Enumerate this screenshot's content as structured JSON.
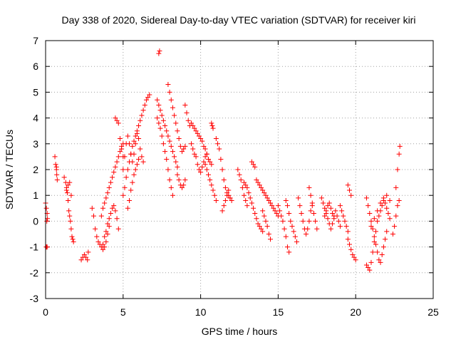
{
  "chart_data": {
    "type": "scatter",
    "title": "Day 338 of 2020, Sidereal Day-to-day VTEC variation (SDTVAR) for receiver kiri",
    "xlabel": "GPS time / hours",
    "ylabel": "SDTVAR / TECUs",
    "xlim": [
      0,
      25
    ],
    "ylim": [
      -3,
      7
    ],
    "xticks": [
      "0",
      "5",
      "10",
      "15",
      "20",
      "25"
    ],
    "yticks": [
      "-3",
      "-2",
      "-1",
      "0",
      "1",
      "2",
      "3",
      "4",
      "5",
      "6",
      "7"
    ],
    "marker": "plus",
    "marker_color": "#ff0000",
    "grid": true,
    "series": [
      {
        "name": "seg01",
        "x": [
          0.0,
          0.05,
          0.1,
          0.12,
          0.08,
          0.04,
          0.06,
          0.1
        ],
        "y": [
          0.7,
          0.5,
          0.3,
          0.1,
          0.0,
          -1.0,
          -1.0,
          -1.0
        ]
      },
      {
        "name": "seg02",
        "x": [
          0.6,
          0.65,
          0.7,
          0.72,
          0.75,
          0.7
        ],
        "y": [
          2.5,
          2.2,
          2.0,
          1.8,
          1.6,
          2.1
        ]
      },
      {
        "name": "seg03",
        "x": [
          1.2,
          1.3,
          1.35,
          1.4,
          1.45,
          1.5,
          1.55,
          1.6,
          1.65,
          1.7,
          1.75,
          1.8
        ],
        "y": [
          1.7,
          1.5,
          1.3,
          1.1,
          0.8,
          0.4,
          0.2,
          0.0,
          -0.3,
          -0.6,
          -0.7,
          -0.8
        ]
      },
      {
        "name": "seg04",
        "x": [
          1.35,
          1.45,
          1.55,
          1.65
        ],
        "y": [
          1.2,
          1.4,
          1.5,
          1.0
        ]
      },
      {
        "name": "seg05",
        "x": [
          2.3,
          2.4,
          2.5,
          2.6,
          2.7,
          2.75
        ],
        "y": [
          -1.5,
          -1.4,
          -1.3,
          -1.4,
          -1.5,
          -1.2
        ]
      },
      {
        "name": "seg06",
        "x": [
          3.0,
          3.1,
          3.2,
          3.3,
          3.4,
          3.5,
          3.6,
          3.7,
          3.8,
          3.9,
          4.0,
          4.1
        ],
        "y": [
          0.5,
          0.2,
          -0.3,
          -0.6,
          -0.8,
          -0.9,
          -1.0,
          -1.1,
          -1.0,
          -0.8,
          -0.5,
          -0.2
        ]
      },
      {
        "name": "seg07",
        "x": [
          3.6,
          3.7,
          3.8,
          3.9,
          4.0,
          4.1,
          4.2,
          4.3,
          4.4,
          4.5,
          4.6,
          4.7,
          4.8,
          4.9,
          5.0
        ],
        "y": [
          0.2,
          0.5,
          0.7,
          0.9,
          1.1,
          1.3,
          1.5,
          1.7,
          1.9,
          2.1,
          2.3,
          2.5,
          2.7,
          2.9,
          3.0
        ]
      },
      {
        "name": "seg08",
        "x": [
          3.7,
          3.8,
          3.9,
          4.0,
          4.1,
          4.2,
          4.3,
          4.4,
          4.5,
          4.6,
          4.7
        ],
        "y": [
          -0.9,
          -0.6,
          -0.4,
          -0.1,
          0.1,
          0.3,
          0.5,
          0.6,
          0.4,
          0.1,
          -0.3
        ]
      },
      {
        "name": "seg09",
        "x": [
          4.5,
          4.6,
          4.7,
          4.8,
          4.9,
          5.0
        ],
        "y": [
          4.0,
          3.9,
          3.8,
          3.2,
          2.8,
          2.5
        ]
      },
      {
        "name": "seg10",
        "x": [
          5.0,
          5.1,
          5.2,
          5.3,
          5.4,
          5.5,
          5.6,
          5.7,
          5.8,
          5.9,
          6.0,
          6.1,
          6.2,
          6.3,
          6.4,
          6.5,
          6.6,
          6.7
        ],
        "y": [
          2.0,
          2.5,
          3.0,
          3.3,
          3.0,
          2.6,
          2.3,
          2.6,
          3.0,
          3.4,
          3.7,
          3.9,
          4.1,
          4.3,
          4.5,
          4.7,
          4.8,
          4.9
        ]
      },
      {
        "name": "seg11",
        "x": [
          5.0,
          5.1,
          5.2,
          5.3,
          5.4,
          5.5,
          5.6,
          5.7,
          5.8,
          5.9,
          6.0,
          6.1,
          6.2,
          6.3
        ],
        "y": [
          1.0,
          1.3,
          1.7,
          2.0,
          2.3,
          2.6,
          2.9,
          3.1,
          3.3,
          3.5,
          3.2,
          2.8,
          2.5,
          2.3
        ]
      },
      {
        "name": "seg12",
        "x": [
          5.3,
          5.4,
          5.5,
          5.6,
          5.7,
          5.8,
          5.9,
          6.0
        ],
        "y": [
          0.5,
          0.8,
          1.2,
          1.5,
          1.8,
          2.0,
          2.2,
          2.4
        ]
      },
      {
        "name": "seg13",
        "x": [
          7.3,
          7.35
        ],
        "y": [
          6.5,
          6.6
        ]
      },
      {
        "name": "seg14",
        "x": [
          7.2,
          7.3,
          7.4,
          7.5,
          7.6,
          7.7,
          7.8,
          7.9,
          8.0,
          8.1,
          8.2,
          8.3,
          8.4,
          8.5
        ],
        "y": [
          4.7,
          4.5,
          4.3,
          4.1,
          3.9,
          3.7,
          3.5,
          3.3,
          3.1,
          2.9,
          2.7,
          2.5,
          2.3,
          2.1
        ]
      },
      {
        "name": "seg15",
        "x": [
          7.2,
          7.3,
          7.4,
          7.5,
          7.6,
          7.7,
          7.8,
          7.9,
          8.0,
          8.1,
          8.2
        ],
        "y": [
          4.0,
          3.8,
          3.6,
          3.3,
          3.0,
          2.7,
          2.4,
          2.0,
          1.6,
          1.3,
          1.0
        ]
      },
      {
        "name": "seg16",
        "x": [
          7.9,
          8.0,
          8.1,
          8.2,
          8.3,
          8.4,
          8.5,
          8.6,
          8.7,
          8.8,
          8.9,
          9.0
        ],
        "y": [
          5.3,
          5.0,
          4.7,
          4.4,
          4.1,
          3.8,
          3.5,
          3.2,
          2.9,
          2.7,
          2.8,
          2.9
        ]
      },
      {
        "name": "seg17",
        "x": [
          8.5,
          8.6,
          8.7,
          8.8,
          8.9,
          9.0
        ],
        "y": [
          1.8,
          1.6,
          1.4,
          1.3,
          1.4,
          1.6
        ]
      },
      {
        "name": "seg18",
        "x": [
          9.0,
          9.1,
          9.2,
          9.3,
          9.4,
          9.5,
          9.6,
          9.7,
          9.8,
          9.9,
          10.0,
          10.1,
          10.2,
          10.3,
          10.4,
          10.5,
          10.6,
          10.7
        ],
        "y": [
          4.5,
          4.2,
          3.9,
          3.7,
          3.8,
          3.7,
          3.6,
          3.5,
          3.4,
          3.3,
          3.2,
          3.1,
          2.9,
          2.8,
          2.6,
          2.4,
          2.3,
          2.2
        ]
      },
      {
        "name": "seg19",
        "x": [
          9.4,
          9.5,
          9.6,
          9.7,
          9.8,
          9.9,
          10.0,
          10.1,
          10.2,
          10.3,
          10.4,
          10.5
        ],
        "y": [
          3.0,
          2.8,
          2.6,
          2.5,
          2.2,
          2.0,
          1.9,
          2.1,
          2.3,
          2.5,
          2.6,
          2.4
        ]
      },
      {
        "name": "seg20",
        "x": [
          10.3,
          10.4,
          10.5,
          10.6,
          10.7,
          10.8,
          10.9,
          11.0
        ],
        "y": [
          2.2,
          2.0,
          1.8,
          1.6,
          1.4,
          1.2,
          1.0,
          0.8
        ]
      },
      {
        "name": "seg21",
        "x": [
          10.7,
          10.75,
          10.8
        ],
        "y": [
          3.8,
          3.7,
          3.6
        ]
      },
      {
        "name": "seg22",
        "x": [
          11.0,
          11.1,
          11.2,
          11.3,
          11.4,
          11.5,
          11.6,
          11.7,
          11.8,
          11.9,
          12.0
        ],
        "y": [
          3.2,
          3.0,
          2.8,
          2.4,
          2.0,
          1.6,
          1.3,
          1.1,
          1.0,
          0.9,
          0.8
        ]
      },
      {
        "name": "seg23",
        "x": [
          11.4,
          11.5,
          11.6,
          11.7,
          11.8,
          11.9
        ],
        "y": [
          0.4,
          0.6,
          0.8,
          1.0,
          1.2,
          0.9
        ]
      },
      {
        "name": "seg24",
        "x": [
          12.4,
          12.5,
          12.6,
          12.7,
          12.8,
          12.9,
          13.0
        ],
        "y": [
          2.0,
          1.8,
          1.6,
          1.3,
          1.0,
          0.8,
          0.6
        ]
      },
      {
        "name": "seg25",
        "x": [
          12.8,
          12.9,
          13.0,
          13.1,
          13.2,
          13.3,
          13.4,
          13.5,
          13.6,
          13.7,
          13.8,
          13.9,
          14.0
        ],
        "y": [
          1.5,
          1.4,
          1.3,
          1.1,
          0.9,
          0.7,
          0.5,
          0.3,
          0.1,
          -0.1,
          -0.2,
          -0.3,
          -0.4
        ]
      },
      {
        "name": "seg26",
        "x": [
          13.3,
          13.4,
          13.5
        ],
        "y": [
          2.3,
          2.2,
          2.1
        ]
      },
      {
        "name": "seg27",
        "x": [
          13.6,
          13.7,
          13.8,
          13.9,
          14.0,
          14.1,
          14.2,
          14.3,
          14.4,
          14.5,
          14.6,
          14.7,
          14.8,
          14.9,
          15.0
        ],
        "y": [
          1.6,
          1.5,
          1.4,
          1.3,
          1.2,
          1.1,
          1.0,
          0.9,
          0.8,
          0.7,
          0.6,
          0.5,
          0.4,
          0.3,
          0.2
        ]
      },
      {
        "name": "seg28",
        "x": [
          14.0,
          14.1,
          14.2,
          14.3,
          14.4,
          14.5
        ],
        "y": [
          0.4,
          0.2,
          0.0,
          -0.2,
          -0.5,
          -0.7
        ]
      },
      {
        "name": "seg29",
        "x": [
          15.0,
          15.1,
          15.2,
          15.3,
          15.4,
          15.5,
          15.6,
          15.7
        ],
        "y": [
          0.6,
          0.4,
          0.2,
          0.0,
          -0.3,
          -0.6,
          -1.0,
          -1.2
        ]
      },
      {
        "name": "seg30",
        "x": [
          15.5,
          15.6,
          15.7,
          15.8,
          15.9,
          16.0,
          16.1,
          16.2
        ],
        "y": [
          0.8,
          0.6,
          0.3,
          0.0,
          -0.2,
          -0.4,
          -0.6,
          -0.8
        ]
      },
      {
        "name": "seg31",
        "x": [
          16.3,
          16.4,
          16.5,
          16.6,
          16.7,
          16.8,
          16.9,
          17.0,
          17.1,
          17.2
        ],
        "y": [
          0.9,
          0.6,
          0.3,
          0.0,
          -0.3,
          -0.5,
          -0.3,
          0.0,
          0.4,
          0.7
        ]
      },
      {
        "name": "seg32",
        "x": [
          17.0,
          17.1,
          17.2,
          17.3,
          17.4,
          17.5
        ],
        "y": [
          1.3,
          1.0,
          0.6,
          0.3,
          0.0,
          -0.3
        ]
      },
      {
        "name": "seg33",
        "x": [
          17.8,
          17.9,
          18.0,
          18.1,
          18.2,
          18.3,
          18.4,
          18.5,
          18.6,
          18.7,
          18.8,
          18.9,
          19.0
        ],
        "y": [
          0.9,
          0.7,
          0.5,
          0.3,
          0.1,
          -0.1,
          -0.3,
          -0.1,
          0.2,
          0.4,
          0.2,
          0.0,
          -0.2
        ]
      },
      {
        "name": "seg34",
        "x": [
          18.0,
          18.1,
          18.2,
          18.3,
          18.4,
          18.5,
          18.6
        ],
        "y": [
          0.2,
          0.4,
          0.6,
          0.7,
          0.5,
          0.3,
          0.1
        ]
      },
      {
        "name": "seg35",
        "x": [
          19.0,
          19.1,
          19.2,
          19.3,
          19.4,
          19.5
        ],
        "y": [
          0.6,
          0.4,
          0.2,
          0.0,
          -0.2,
          -0.4
        ]
      },
      {
        "name": "seg36",
        "x": [
          19.5,
          19.6,
          19.7,
          19.8,
          19.9,
          20.0
        ],
        "y": [
          -0.7,
          -0.9,
          -1.1,
          -1.3,
          -1.4,
          -1.5
        ]
      },
      {
        "name": "seg37",
        "x": [
          19.5,
          19.6,
          19.7
        ],
        "y": [
          1.4,
          1.2,
          1.0
        ]
      },
      {
        "name": "seg38",
        "x": [
          20.7,
          20.8,
          20.9,
          21.0,
          21.1,
          21.2,
          21.3,
          21.4,
          21.5,
          21.6,
          21.7,
          21.8,
          21.9,
          22.0,
          22.1,
          22.2
        ],
        "y": [
          -1.7,
          -1.8,
          -1.9,
          -1.6,
          -1.2,
          -0.8,
          -0.4,
          0.0,
          0.2,
          0.4,
          0.6,
          0.8,
          0.7,
          0.5,
          0.3,
          0.1
        ]
      },
      {
        "name": "seg39",
        "x": [
          20.7,
          20.8,
          20.9,
          21.0,
          21.1,
          21.2,
          21.3,
          21.4,
          21.5,
          21.6,
          21.7,
          21.8,
          21.9,
          22.0
        ],
        "y": [
          0.9,
          0.6,
          0.3,
          0.0,
          -0.3,
          -0.6,
          -0.9,
          -1.2,
          -1.5,
          -1.6,
          -1.3,
          -1.0,
          -0.7,
          -0.4
        ]
      },
      {
        "name": "seg40",
        "x": [
          21.0,
          21.2,
          21.4,
          21.6,
          21.8,
          22.0,
          22.2
        ],
        "y": [
          -0.2,
          0.1,
          0.4,
          0.7,
          0.9,
          1.0,
          0.8
        ]
      },
      {
        "name": "seg41",
        "x": [
          22.4,
          22.5,
          22.6,
          22.7,
          22.8
        ],
        "y": [
          -0.5,
          -0.2,
          0.2,
          0.6,
          0.8
        ]
      },
      {
        "name": "seg42",
        "x": [
          22.6,
          22.7,
          22.8,
          22.85
        ],
        "y": [
          1.3,
          2.0,
          2.6,
          2.9
        ]
      }
    ]
  }
}
